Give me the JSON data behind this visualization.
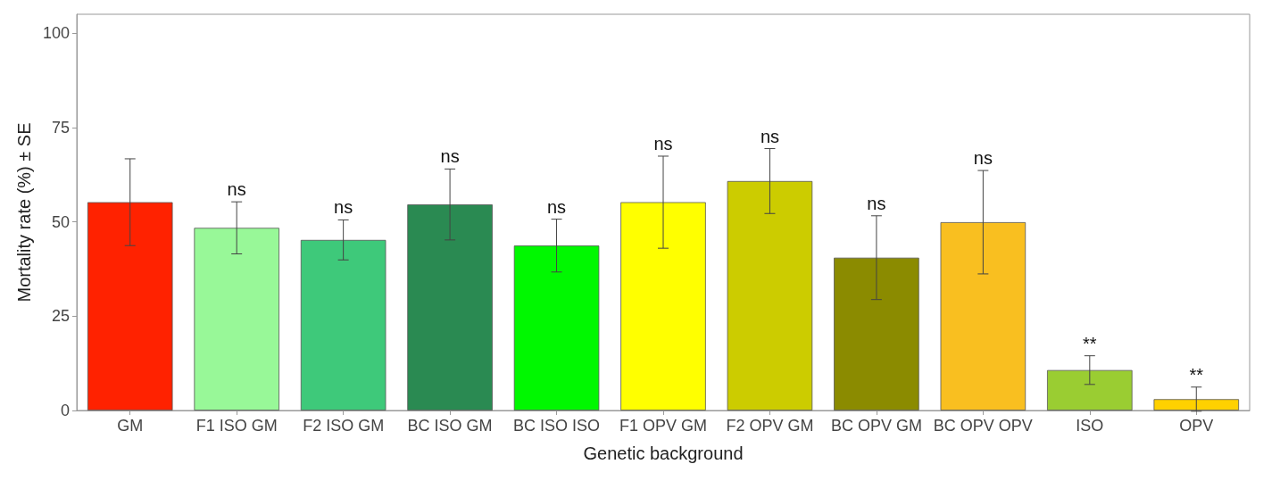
{
  "chart_data": {
    "type": "bar",
    "xlabel": "Genetic background",
    "ylabel": "Mortality rate (%) ± SE",
    "categories": [
      "GM",
      "F1 ISO GM",
      "F2 ISO GM",
      "BC ISO GM",
      "BC ISO ISO",
      "F1 OPV GM",
      "F2 OPV GM",
      "BC OPV GM",
      "BC OPV OPV",
      "ISO",
      "OPV"
    ],
    "values": [
      55.2,
      48.4,
      45.2,
      54.6,
      43.7,
      55.2,
      60.8,
      40.5,
      49.9,
      10.7,
      3.0
    ],
    "errors": [
      11.5,
      6.9,
      5.3,
      9.4,
      7.0,
      12.2,
      8.6,
      11.1,
      13.7,
      3.8,
      3.2
    ],
    "colors": [
      "#ff2200",
      "#98f898",
      "#3ec97a",
      "#2a8a52",
      "#00f800",
      "#ffff00",
      "#cccc00",
      "#8b8b00",
      "#f9bf20",
      "#9acd32",
      "#ffd100"
    ],
    "ylim": [
      0,
      105
    ],
    "yticks": [
      0,
      25,
      50,
      75,
      100
    ],
    "grid": false,
    "annotations": [
      {
        "text": "ns",
        "x": "F1 ISO GM",
        "y": 55.3
      },
      {
        "text": "ns",
        "x": "F2 ISO GM",
        "y": 50.5
      },
      {
        "text": "ns",
        "x": "BC ISO GM",
        "y": 64.0
      },
      {
        "text": "ns",
        "x": "BC ISO ISO",
        "y": 50.7
      },
      {
        "text": "ns",
        "x": "F1 OPV GM",
        "y": 67.4
      },
      {
        "text": "ns",
        "x": "F2 OPV GM",
        "y": 69.4
      },
      {
        "text": "ns",
        "x": "BC OPV GM",
        "y": 51.6
      },
      {
        "text": "ns",
        "x": "BC OPV OPV",
        "y": 63.6
      },
      {
        "text": "**",
        "x": "ISO",
        "y": 14.5
      },
      {
        "text": "**",
        "x": "OPV",
        "y": 6.2
      }
    ]
  }
}
